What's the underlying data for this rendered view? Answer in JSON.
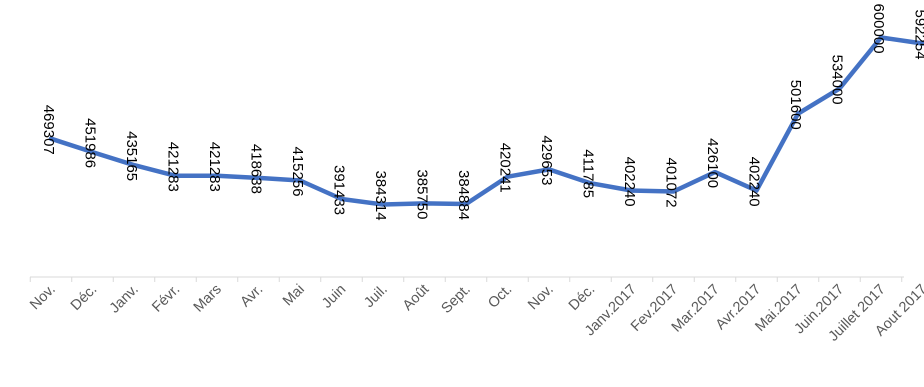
{
  "chart_data": {
    "type": "line",
    "title": "",
    "xlabel": "",
    "ylabel": "",
    "categories": [
      "Nov.",
      "Déc.",
      "Janv.",
      "Févr.",
      "Mars",
      "Avr.",
      "Mai",
      "Juin",
      "Juil.",
      "Août",
      "Sept.",
      "Oct.",
      "Nov.",
      "Déc.",
      "Janv.2017",
      "Fev.2017",
      "Mar.2017",
      "Avr.2017",
      "Mai.2017",
      "Juin.2017",
      "Juillet 2017",
      "Aout 2017"
    ],
    "series": [
      {
        "values": [
          469307,
          451986,
          435165,
          421283,
          421283,
          418638,
          415256,
          391433,
          384314,
          385750,
          384884,
          420241,
          429653,
          411785,
          402240,
          401072,
          426100,
          402240,
          501600,
          534000,
          600000,
          592254
        ]
      }
    ],
    "ylim": [
      310000,
      620000
    ],
    "line_color": "#4472C4",
    "axis_color": "#D9D9D9",
    "text_color": "#595959",
    "legend": "none",
    "grid": false,
    "data_labels": true
  }
}
